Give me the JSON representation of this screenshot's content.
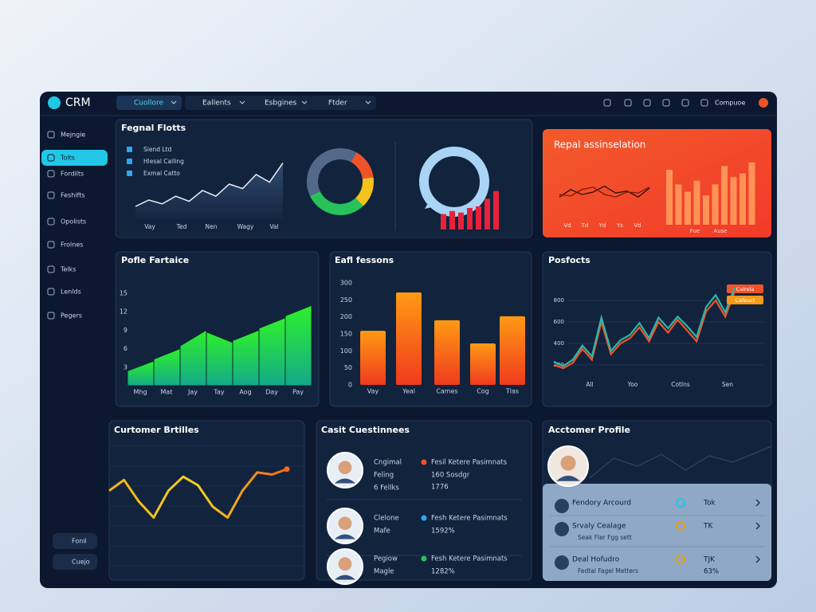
{
  "topbar": {
    "logo": "CRM",
    "tabs": [
      "Cuollore",
      "Eallents",
      "Esbgines",
      "Ftder"
    ],
    "user": "Compuoe"
  },
  "sidebar": {
    "items": [
      "Mejngie",
      "Tolts",
      "Fordilts",
      "Feshifts",
      "Opolists",
      "Frolnes",
      "Telks",
      "Lenlds",
      "Pegers"
    ],
    "buttons": [
      "Fonil",
      "Cuejo"
    ]
  },
  "signal": {
    "title": "Fegnal Flotts",
    "legend": [
      "Siend Ltd",
      "Hlesal Calling",
      "Exmal Catto"
    ],
    "categories": [
      "Vay",
      "Ted",
      "Nen",
      "Wagy",
      "Val"
    ],
    "ylim": [
      0,
      100
    ],
    "line": [
      20,
      30,
      24,
      36,
      28,
      45,
      36,
      55,
      48,
      70,
      58,
      88
    ],
    "donut": [
      {
        "value": 15,
        "color": "#f0532a"
      },
      {
        "value": 15,
        "color": "#f4c21c"
      },
      {
        "value": 30,
        "color": "#27c25a"
      },
      {
        "value": 40,
        "color": "#53698a"
      }
    ],
    "bars": [
      20,
      24,
      22,
      28,
      30,
      40,
      50
    ],
    "bars_ylim": [
      0,
      60
    ]
  },
  "report": {
    "title": "Repal assinselation",
    "categories": [
      "Vd",
      "Td",
      "Yd",
      "Ys",
      "Vd"
    ],
    "ylim": [
      0,
      100
    ],
    "lines": [
      [
        40,
        55,
        45,
        50,
        62,
        48,
        52,
        40,
        58
      ],
      [
        45,
        42,
        55,
        60,
        45,
        40,
        50,
        48,
        60
      ]
    ],
    "bars": [
      75,
      55,
      45,
      60,
      40,
      55,
      80,
      65,
      70,
      85
    ],
    "bar_labels": [
      "Fue",
      "Ause"
    ]
  },
  "profile_perf": {
    "title": "Pofle Fartaice",
    "categories": [
      "Mhg",
      "Mat",
      "Jay",
      "Tay",
      "Aog",
      "Day",
      "Pay"
    ],
    "values": [
      4,
      6,
      9,
      7,
      9,
      11,
      13
    ],
    "ylim": [
      0,
      16
    ],
    "yticks": [
      3,
      6,
      9,
      12,
      15
    ]
  },
  "lessons": {
    "title": "Eafl fessons",
    "categories": [
      "Vay",
      "Yeal",
      "Cames",
      "Cog",
      "Tlas"
    ],
    "values": [
      159,
      272,
      190,
      122,
      202
    ],
    "ylim": [
      0,
      300
    ],
    "yticks": [
      0,
      50,
      100,
      150,
      200,
      250,
      300
    ]
  },
  "posfocts": {
    "title": "Posfocts",
    "categories": [
      "All",
      "Yoo",
      "Cotlns",
      "Sen"
    ],
    "ylim": [
      0,
      1000
    ],
    "yticks": [
      200,
      400,
      600,
      800
    ],
    "series": [
      {
        "name": "Calrela",
        "color": "#f0532a",
        "values": [
          200,
          170,
          220,
          350,
          250,
          600,
          300,
          400,
          450,
          550,
          420,
          600,
          500,
          620,
          520,
          420,
          700,
          800,
          650,
          880
        ]
      },
      {
        "name": "Cafeuct",
        "color": "#2bb8a8",
        "values": [
          230,
          190,
          250,
          380,
          280,
          640,
          330,
          430,
          480,
          590,
          450,
          640,
          540,
          650,
          560,
          460,
          740,
          850,
          690,
          920
        ]
      }
    ]
  },
  "customer": {
    "title": "Curtomer Brtilles",
    "ylim": [
      0,
      100
    ],
    "values": [
      55,
      65,
      45,
      30,
      55,
      68,
      60,
      40,
      30,
      55,
      72,
      70,
      75
    ]
  },
  "cases": {
    "title": "Casit Cuestinnees",
    "rows": [
      {
        "name": [
          "Cngimal",
          "Feling",
          "6 Fellks"
        ],
        "tag": "Fesil Ketere Pasimnats",
        "detail": [
          "160 Sosdgr",
          "1776"
        ],
        "color": "#f0532a"
      },
      {
        "name": [
          "Clelone",
          "Mafe"
        ],
        "tag": "Fesh Ketere Pasimnats",
        "detail": [
          "1592%"
        ],
        "color": "#2ea8f0"
      },
      {
        "name": [
          "Pegiow",
          "Magle"
        ],
        "tag": "Fesh Ketere Pasimnats",
        "detail": [
          "1282%"
        ],
        "color": "#27c25a"
      }
    ]
  },
  "account": {
    "title": "Acctomer Profile",
    "rows": [
      {
        "name": "Fendory Arcourd",
        "value": "Tok"
      },
      {
        "name": "Srvaly Cealage",
        "sub": "Seak Fler Fgg sett",
        "value": "TK"
      },
      {
        "name": "Deal Hofudro",
        "sub": "Fedtal Fagel Metters",
        "value": "TJK",
        "extra": "63%"
      }
    ]
  }
}
